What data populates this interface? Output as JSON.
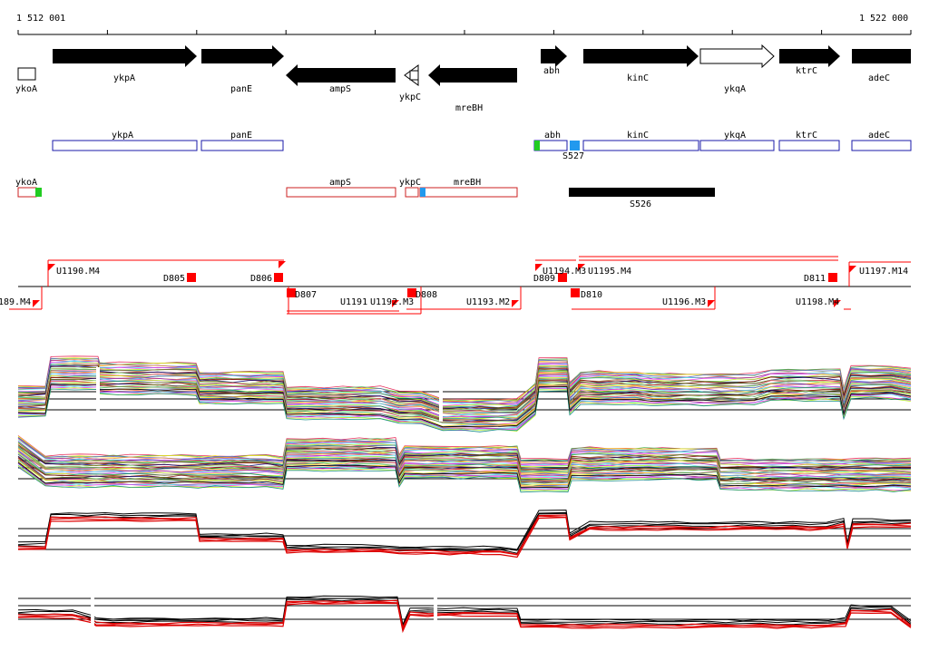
{
  "ruler": {
    "start_label": "1 512 001",
    "end_label": "1 522 000"
  },
  "colors": {
    "gene_fill": "#000000",
    "plus_box": "#1a1aa8",
    "minus_box": "#cc2222",
    "feature_red": "#ff0000",
    "green": "#22cc22",
    "blue": "#2299ee",
    "probe_red": "#dd0000"
  },
  "genes": {
    "ykoA": "ykoA",
    "ykpA": "ykpA",
    "panE": "panE",
    "ampS": "ampS",
    "ykpC": "ykpC",
    "mreBH": "mreBH",
    "abh": "abh",
    "kinC": "kinC",
    "ykqA": "ykqA",
    "ktrC": "ktrC",
    "adeC": "adeC"
  },
  "features": {
    "S527": "S527",
    "S526": "S526"
  },
  "segments": {
    "U1189": "189.M4",
    "U1190": "U1190.M4",
    "D805": "D805",
    "D806": "D806",
    "D807": "D807",
    "U1191": "U1191",
    "U1192": "U1192.M3",
    "D808": "D808",
    "U1193": "U1193.M2",
    "D809": "D809",
    "U1194": "U1194.M3",
    "U1195": "U1195.M4",
    "D810": "D810",
    "U1196": "U1196.M3",
    "D811": "D811",
    "U1197": "U1197.M14",
    "U1198": "U1198.M4"
  },
  "tracks": [
    {
      "name": "expression-track-1",
      "palette": "multicolor"
    },
    {
      "name": "expression-track-2",
      "palette": "multicolor"
    },
    {
      "name": "expression-track-3",
      "palette": "black-red"
    },
    {
      "name": "expression-track-4",
      "palette": "black-red"
    }
  ]
}
